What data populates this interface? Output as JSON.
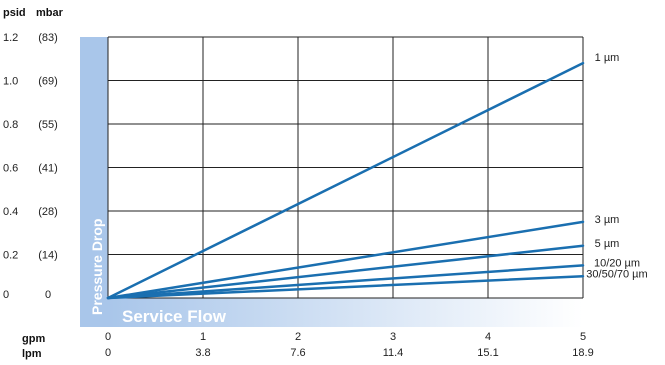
{
  "chart_data": {
    "type": "line",
    "title": "",
    "xlabel": "Service Flow",
    "ylabel": "Pressure Drop",
    "y_units": [
      "psid",
      "mbar"
    ],
    "x_units": [
      "gpm",
      "lpm"
    ],
    "x_ticks_gpm": [
      "0",
      "1",
      "2",
      "3",
      "4",
      "5"
    ],
    "x_ticks_lpm": [
      "0",
      "3.8",
      "7.6",
      "11.4",
      "15.1",
      "18.9"
    ],
    "y_ticks_psid": [
      "0",
      "0.2",
      "0.4",
      "0.6",
      "0.8",
      "1.0",
      "1.2"
    ],
    "y_ticks_mbar": [
      "0",
      "(14)",
      "(28)",
      "(41)",
      "(55)",
      "(69)",
      "(83)"
    ],
    "xlim": [
      0,
      5
    ],
    "ylim": [
      0,
      1.2
    ],
    "grid": true,
    "line_color": "#1a6fb0",
    "band_color": "#a9c6ea",
    "series": [
      {
        "name": "1 µm",
        "x": [
          0,
          5
        ],
        "y": [
          0,
          1.08
        ]
      },
      {
        "name": "3 µm",
        "x": [
          0,
          5
        ],
        "y": [
          0,
          0.35
        ]
      },
      {
        "name": "5 µm",
        "x": [
          0,
          5
        ],
        "y": [
          0,
          0.24
        ]
      },
      {
        "name": "10/20 µm",
        "x": [
          0,
          5
        ],
        "y": [
          0,
          0.15
        ]
      },
      {
        "name": "30/50/70 µm",
        "x": [
          0,
          5
        ],
        "y": [
          0,
          0.1
        ]
      }
    ]
  }
}
